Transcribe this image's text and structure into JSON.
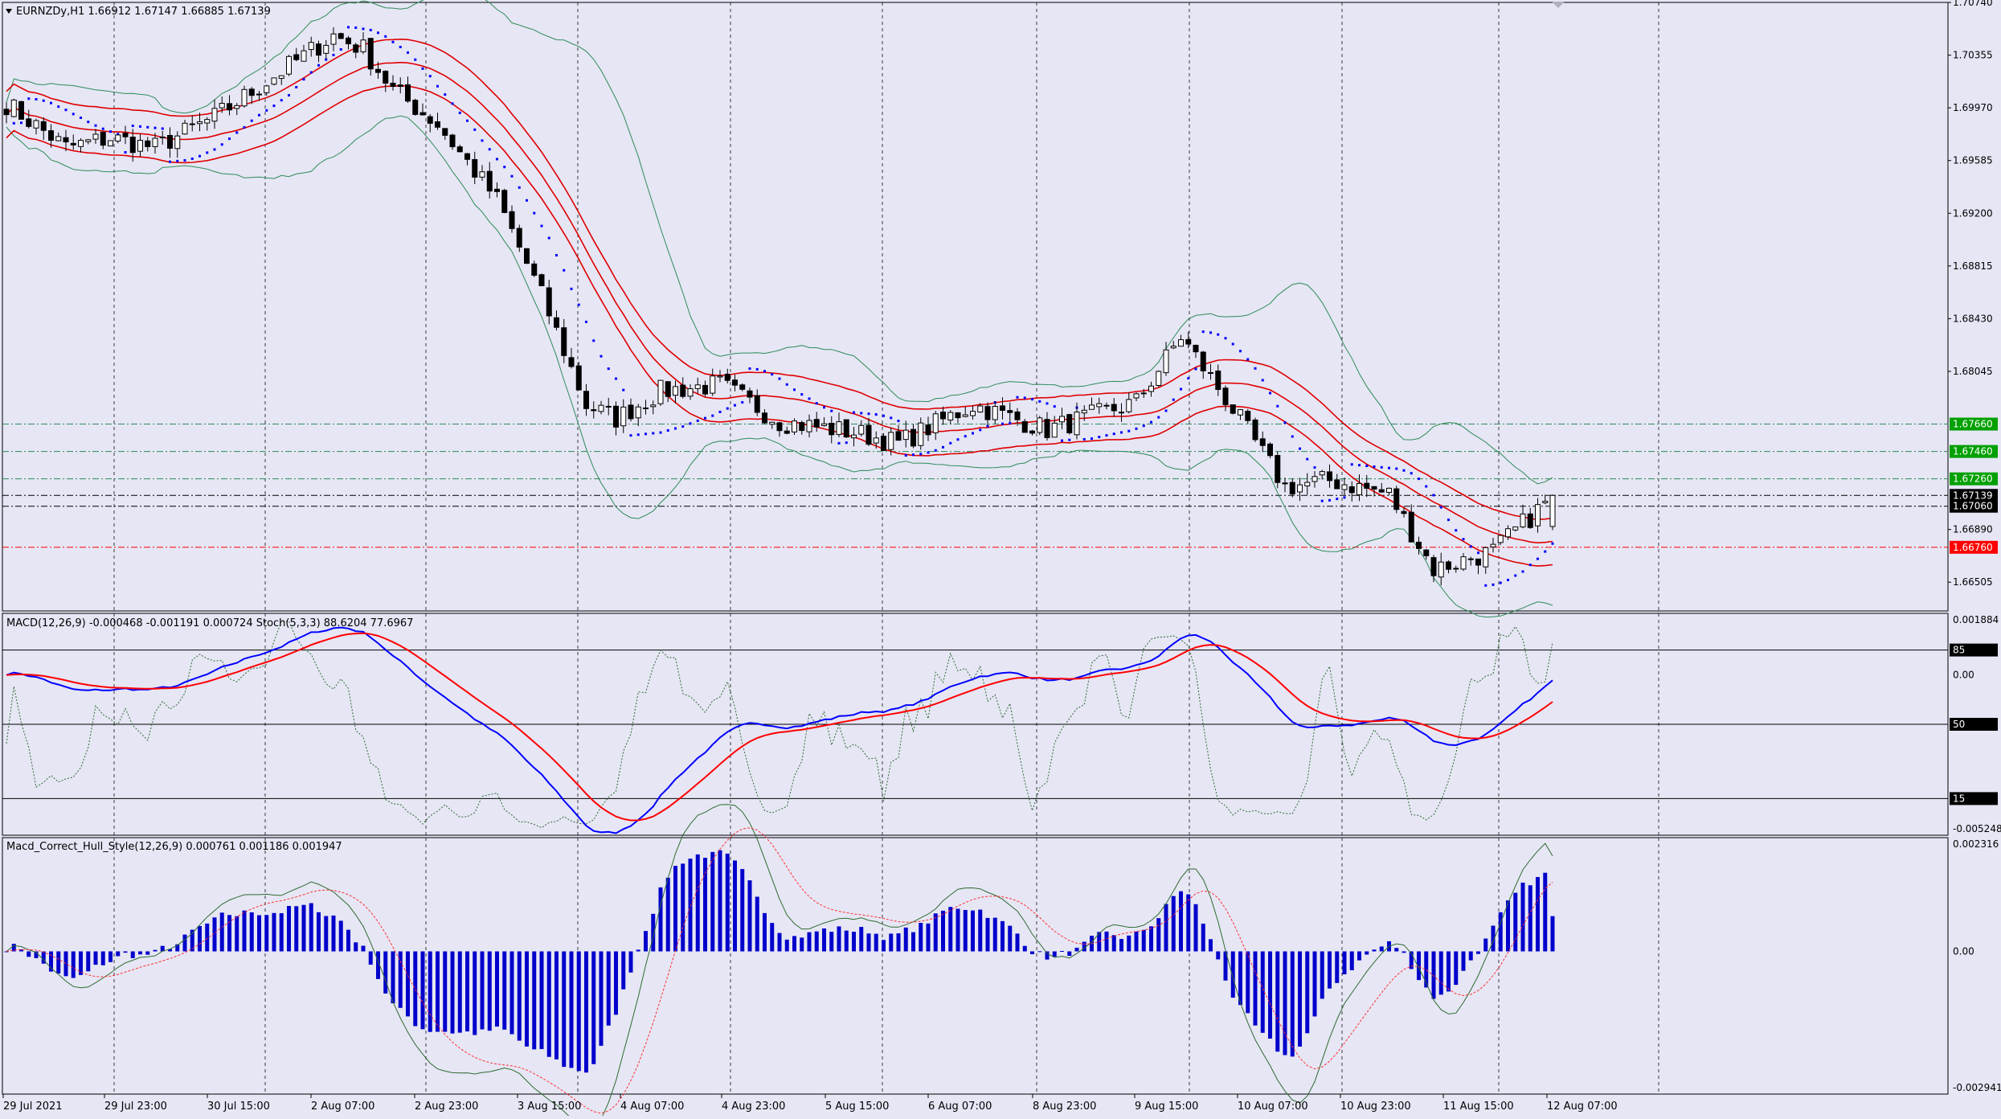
{
  "window": {
    "symbol_line": "EURNZDy,H1  1.66912 1.67147 1.66885 1.67139",
    "menu_triangle": "chevron-down-icon"
  },
  "colors": {
    "background": "#e6e6f5",
    "bull_candle": "#ffffff",
    "bear_candle": "#000000",
    "candle_outline": "#000000",
    "bands": "#2e8b57",
    "envelope": "#e00000",
    "sar": "#0000ff",
    "macd_main": "#0000ff",
    "macd_signal": "#ff0000",
    "stoch": "#2f6b2f",
    "hist": "#0000cc",
    "hull_line": "#2f6b2f",
    "hull_signal": "#ff3030",
    "green_label": "#00a000",
    "red_label": "#ff0000",
    "black_label": "#000000"
  },
  "price_panel": {
    "axis_labels": [
      "1.70740",
      "1.70355",
      "1.69970",
      "1.69585",
      "1.69200",
      "1.68815",
      "1.68430",
      "1.68045",
      "1.67660",
      "1.67460",
      "1.67260",
      "1.67139",
      "1.67060",
      "1.66890",
      "1.66760",
      "1.66505"
    ],
    "levels": [
      {
        "price": "1.67660",
        "color": "green"
      },
      {
        "price": "1.67460",
        "color": "green"
      },
      {
        "price": "1.67260",
        "color": "green"
      },
      {
        "price": "1.67139",
        "color": "black"
      },
      {
        "price": "1.67060",
        "color": "black"
      },
      {
        "price": "1.66760",
        "color": "red"
      }
    ]
  },
  "macd_panel": {
    "title": "MACD(12,26,9) -0.000468 -0.001191 0.000724  Stoch(5,3,3) 88.6204 77.6967",
    "axis_labels": [
      "0.001884",
      "85",
      "0.00",
      "50",
      "15",
      "-0.005248"
    ],
    "stoch_levels": [
      "85",
      "50",
      "15"
    ]
  },
  "hull_panel": {
    "title": "Macd_Correct_Hull_Style(12,26,9) 0.000761 0.001186 0.001947",
    "axis_labels": [
      "0.002316",
      "0.00",
      "-0.002941"
    ]
  },
  "time_axis": {
    "labels": [
      "29 Jul 2021",
      "29 Jul 23:00",
      "30 Jul 15:00",
      "2 Aug 07:00",
      "2 Aug 23:00",
      "3 Aug 15:00",
      "4 Aug 07:00",
      "4 Aug 23:00",
      "5 Aug 15:00",
      "6 Aug 07:00",
      "8 Aug 23:00",
      "9 Aug 15:00",
      "10 Aug 07:00",
      "10 Aug 23:00",
      "11 Aug 15:00",
      "12 Aug 07:00"
    ]
  },
  "chart_data": {
    "type": "candlestick",
    "symbol": "EURNZDy",
    "timeframe": "H1",
    "last": {
      "open": 1.66912,
      "high": 1.67147,
      "low": 1.66885,
      "close": 1.67139
    },
    "ylim": [
      1.66295,
      1.7074
    ],
    "anchors": [
      [
        0,
        1.7
      ],
      [
        8,
        1.6968
      ],
      [
        14,
        1.6975
      ],
      [
        20,
        1.6968
      ],
      [
        28,
        1.699
      ],
      [
        36,
        1.702
      ],
      [
        44,
        1.705
      ],
      [
        48,
        1.704
      ],
      [
        52,
        1.701
      ],
      [
        58,
        1.6985
      ],
      [
        66,
        1.693
      ],
      [
        72,
        1.686
      ],
      [
        78,
        1.678
      ],
      [
        82,
        1.677
      ],
      [
        88,
        1.679
      ],
      [
        96,
        1.6795
      ],
      [
        104,
        1.6768
      ],
      [
        114,
        1.676
      ],
      [
        120,
        1.6752
      ],
      [
        130,
        1.678
      ],
      [
        140,
        1.6762
      ],
      [
        152,
        1.6782
      ],
      [
        158,
        1.683
      ],
      [
        164,
        1.6785
      ],
      [
        172,
        1.672
      ],
      [
        178,
        1.6725
      ],
      [
        186,
        1.6715
      ],
      [
        192,
        1.666
      ],
      [
        200,
        1.6673
      ],
      [
        208,
        1.6713
      ]
    ],
    "seed": 7,
    "x": [
      "29 Jul 2021",
      "29 Jul 23:00",
      "30 Jul 15:00",
      "2 Aug 07:00",
      "2 Aug 23:00",
      "3 Aug 15:00",
      "4 Aug 07:00",
      "4 Aug 23:00",
      "5 Aug 15:00",
      "6 Aug 07:00",
      "8 Aug 23:00",
      "9 Aug 15:00",
      "10 Aug 07:00",
      "10 Aug 23:00",
      "11 Aug 15:00",
      "12 Aug 07:00"
    ]
  }
}
